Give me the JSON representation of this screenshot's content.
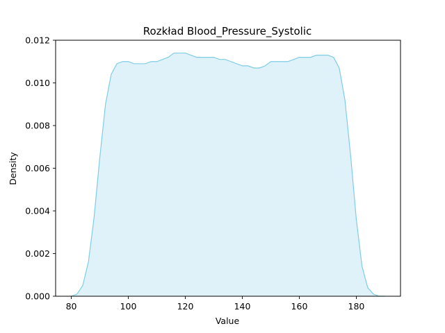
{
  "chart_data": {
    "type": "area",
    "title": "Rozkład Blood_Pressure_Systolic",
    "xlabel": "Value",
    "ylabel": "Density",
    "xlim": [
      74.5,
      195.5
    ],
    "ylim": [
      0,
      0.012
    ],
    "xticks": [
      "80",
      "100",
      "120",
      "140",
      "160",
      "180"
    ],
    "yticks": [
      "0.000",
      "0.002",
      "0.004",
      "0.006",
      "0.008",
      "0.010",
      "0.012"
    ],
    "grid": false,
    "legend": "none",
    "colors": {
      "line": "#7ecde6",
      "fill": "#dff1f9"
    },
    "series": [
      {
        "x": [
          80,
          82,
          84,
          86,
          88,
          90,
          92,
          94,
          96,
          98,
          100,
          102,
          104,
          106,
          108,
          110,
          112,
          114,
          116,
          118,
          120,
          122,
          124,
          126,
          128,
          130,
          132,
          134,
          136,
          138,
          140,
          142,
          144,
          146,
          148,
          150,
          152,
          154,
          156,
          158,
          160,
          162,
          164,
          166,
          168,
          170,
          172,
          174,
          176,
          178,
          180,
          182,
          184,
          186,
          188,
          190
        ],
        "y": [
          0.0,
          0.0001,
          0.0005,
          0.0016,
          0.0037,
          0.0065,
          0.009,
          0.0104,
          0.0109,
          0.011,
          0.011,
          0.0109,
          0.0109,
          0.0109,
          0.011,
          0.011,
          0.0111,
          0.0112,
          0.0114,
          0.0114,
          0.0114,
          0.0113,
          0.0112,
          0.0112,
          0.0112,
          0.0112,
          0.0111,
          0.0111,
          0.011,
          0.0109,
          0.0108,
          0.0108,
          0.0107,
          0.0107,
          0.0108,
          0.011,
          0.011,
          0.011,
          0.011,
          0.0111,
          0.0112,
          0.0112,
          0.0112,
          0.0113,
          0.0113,
          0.0113,
          0.0112,
          0.0107,
          0.0092,
          0.0066,
          0.0036,
          0.0014,
          0.0004,
          0.0001,
          0.0,
          0.0
        ]
      }
    ]
  }
}
